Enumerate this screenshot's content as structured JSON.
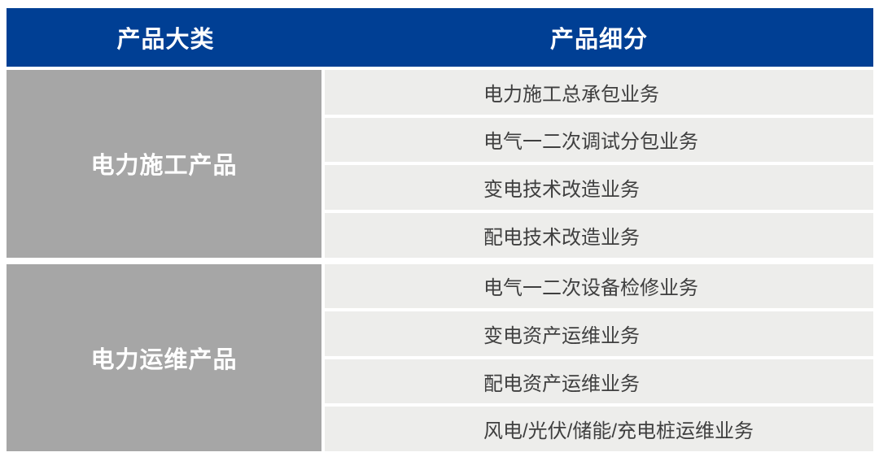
{
  "table": {
    "header": {
      "col1": "产品大类",
      "col2": "产品细分"
    },
    "groups": [
      {
        "category": "电力施工产品",
        "items": [
          "电力施工总承包业务",
          "电气一二次调试分包业务",
          "变电技术改造业务",
          "配电技术改造业务"
        ]
      },
      {
        "category": "电力运维产品",
        "items": [
          "电气一二次设备检修业务",
          "变电资产运维业务",
          "配电资产运维业务",
          "风电/光伏/储能/充电桩运维业务"
        ]
      }
    ],
    "colors": {
      "header_bg": "#003F94",
      "header_text": "#FFFFFF",
      "category_bg": "#A6A6A6",
      "category_text": "#FFFFFF",
      "row_bg": "#EDEDEB",
      "row_text": "#3F3F3F"
    }
  },
  "chart_data": {
    "type": "table",
    "columns": [
      "产品大类",
      "产品细分"
    ],
    "rows": [
      [
        "电力施工产品",
        "电力施工总承包业务"
      ],
      [
        "电力施工产品",
        "电气一二次调试分包业务"
      ],
      [
        "电力施工产品",
        "变电技术改造业务"
      ],
      [
        "电力施工产品",
        "配电技术改造业务"
      ],
      [
        "电力运维产品",
        "电气一二次设备检修业务"
      ],
      [
        "电力运维产品",
        "变电资产运维业务"
      ],
      [
        "电力运维产品",
        "配电资产运维业务"
      ],
      [
        "电力运维产品",
        "风电/光伏/储能/充电桩运维业务"
      ]
    ],
    "layout_hints": {
      "header_background": "#003F94",
      "category_column_background": "#A6A6A6",
      "detail_cell_background": "#EDEDEB",
      "category_rowspan": 4
    }
  }
}
